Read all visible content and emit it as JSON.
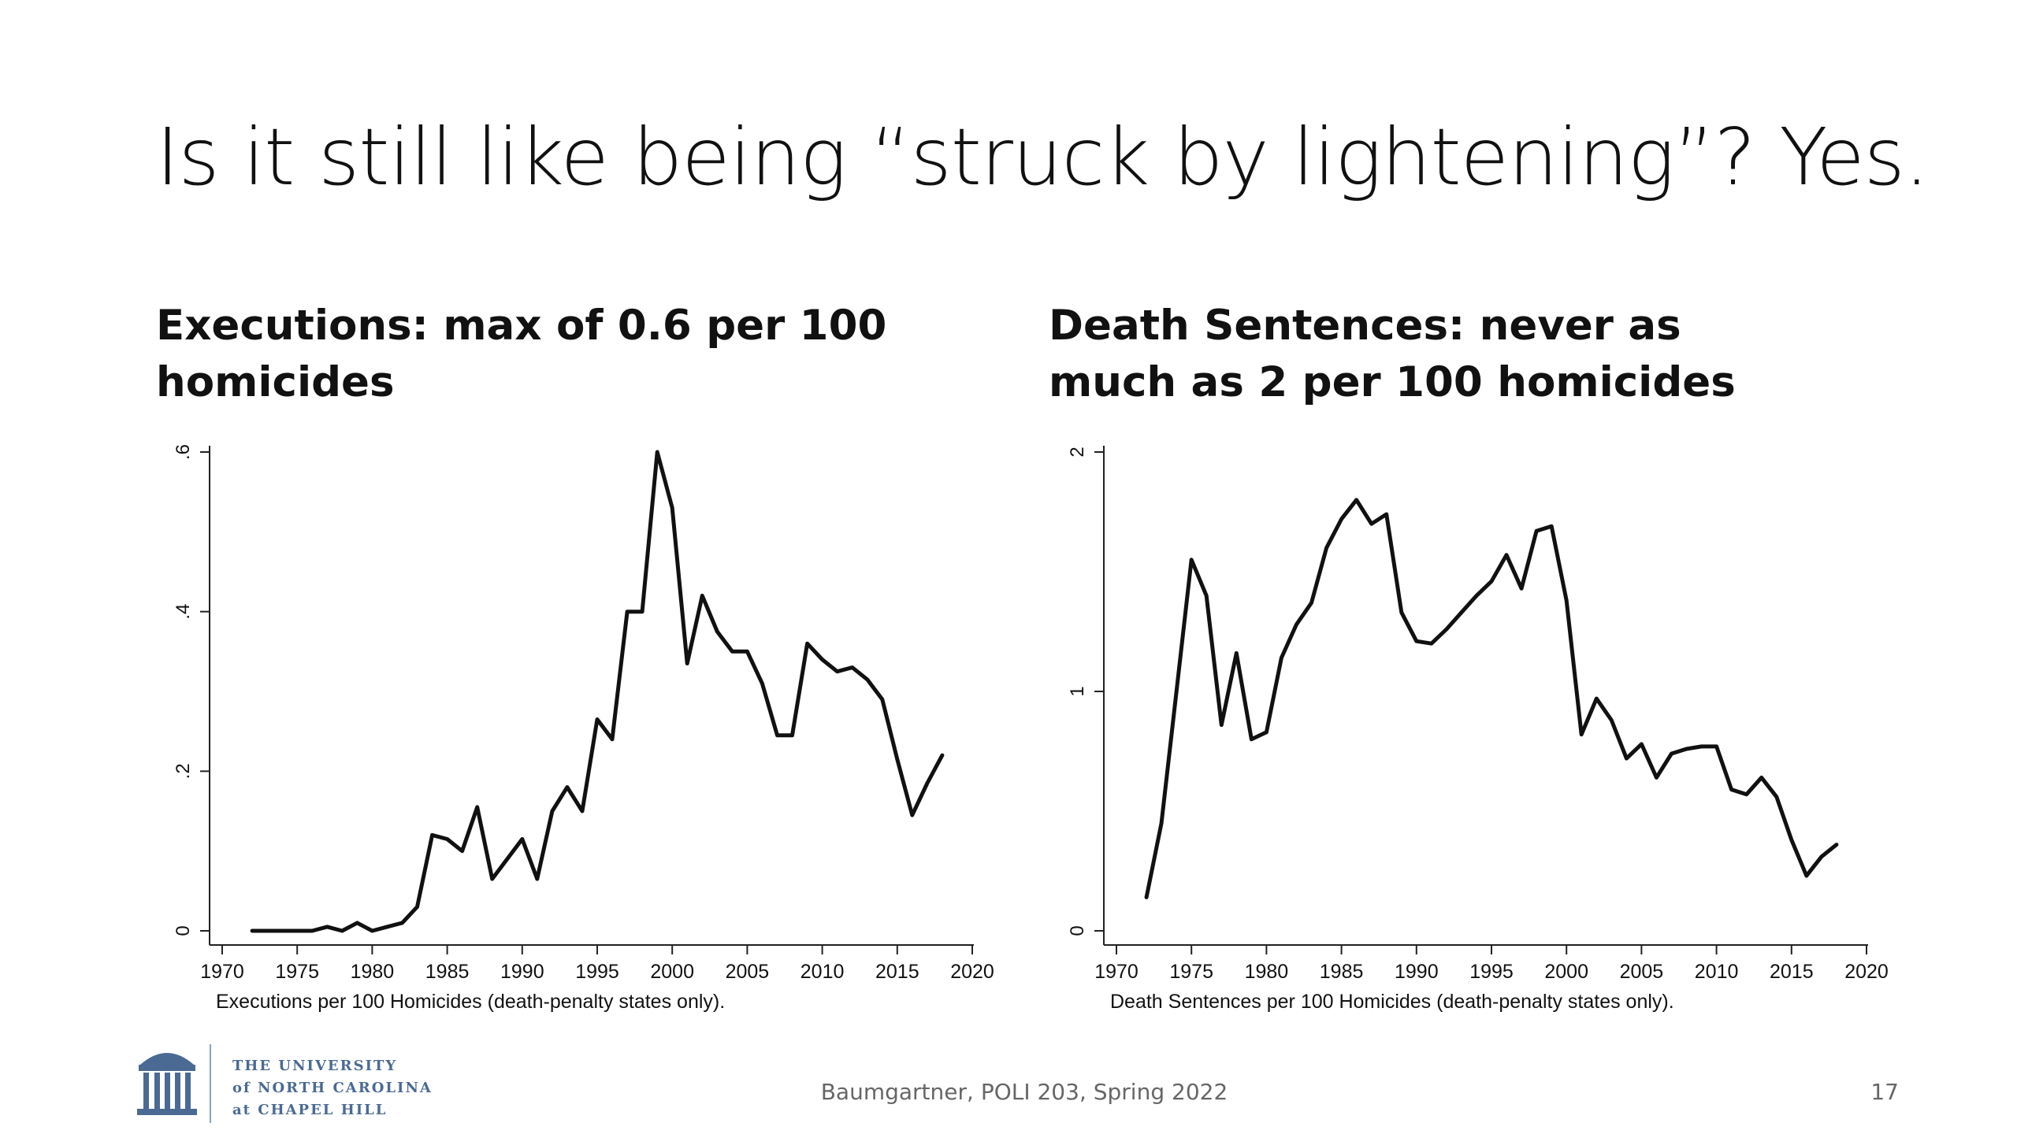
{
  "slide": {
    "title": "Is it still like being “struck by lightening”? Yes.",
    "footer": "Baumgartner, POLI 203, Spring 2022",
    "page_number": "17",
    "logo": {
      "line1": "THE UNIVERSITY",
      "line2": "of NORTH CAROLINA",
      "line3": "at CHAPEL HILL"
    }
  },
  "headings": {
    "left": "Executions: max of 0.6 per 100 homicides",
    "right": "Death Sentences: never as much as 2 per 100 homicides"
  },
  "colors": {
    "line": "#111111",
    "axis": "#222222",
    "text": "#111111",
    "logo": "#4B6A93"
  },
  "chart_data": [
    {
      "type": "line",
      "title": "Executions: max of 0.6 per 100 homicides",
      "xlabel": "Executions per 100 Homicides (death-penalty states only).",
      "ylabel": "",
      "xlim": [
        1970,
        2020
      ],
      "ylim": [
        0,
        0.6
      ],
      "xticks": [
        1970,
        1975,
        1980,
        1985,
        1990,
        1995,
        2000,
        2005,
        2010,
        2015,
        2020
      ],
      "xtick_labels": [
        "1970",
        "1975",
        "1980",
        "1985",
        "1990",
        "1995",
        "2000",
        "2005",
        "2010",
        "2015",
        "2020"
      ],
      "yticks": [
        0,
        0.2,
        0.4,
        0.6
      ],
      "ytick_labels": [
        "0",
        ".2",
        ".4",
        ".6"
      ],
      "series": [
        {
          "name": "Executions per 100 Homicides",
          "x": [
            1972,
            1973,
            1974,
            1975,
            1976,
            1977,
            1978,
            1979,
            1980,
            1981,
            1982,
            1983,
            1984,
            1985,
            1986,
            1987,
            1988,
            1989,
            1990,
            1991,
            1992,
            1993,
            1994,
            1995,
            1996,
            1997,
            1998,
            1999,
            2000,
            2001,
            2002,
            2003,
            2004,
            2005,
            2006,
            2007,
            2008,
            2009,
            2010,
            2011,
            2012,
            2013,
            2014,
            2015,
            2016,
            2017,
            2018
          ],
          "values": [
            0,
            0,
            0,
            0,
            0,
            0.005,
            0,
            0.01,
            0,
            0.005,
            0.01,
            0.03,
            0.12,
            0.115,
            0.1,
            0.155,
            0.065,
            0.09,
            0.115,
            0.065,
            0.15,
            0.18,
            0.15,
            0.265,
            0.24,
            0.4,
            0.4,
            0.6,
            0.53,
            0.335,
            0.42,
            0.375,
            0.35,
            0.35,
            0.31,
            0.245,
            0.245,
            0.36,
            0.34,
            0.325,
            0.33,
            0.315,
            0.29,
            0.215,
            0.145,
            0.185,
            0.22
          ]
        }
      ],
      "grid": false
    },
    {
      "type": "line",
      "title": "Death Sentences: never as much as 2 per 100 homicides",
      "xlabel": "Death Sentences per 100 Homicides (death-penalty states only).",
      "ylabel": "",
      "xlim": [
        1970,
        2020
      ],
      "ylim": [
        0,
        2
      ],
      "xticks": [
        1970,
        1975,
        1980,
        1985,
        1990,
        1995,
        2000,
        2005,
        2010,
        2015,
        2020
      ],
      "xtick_labels": [
        "1970",
        "1975",
        "1980",
        "1985",
        "1990",
        "1995",
        "2000",
        "2005",
        "2010",
        "2015",
        "2020"
      ],
      "yticks": [
        0,
        1,
        2
      ],
      "ytick_labels": [
        "0",
        "1",
        "2"
      ],
      "series": [
        {
          "name": "Death Sentences per 100 Homicides",
          "x": [
            1972,
            1973,
            1974,
            1975,
            1976,
            1977,
            1978,
            1979,
            1980,
            1981,
            1982,
            1983,
            1984,
            1985,
            1986,
            1987,
            1988,
            1989,
            1990,
            1991,
            1992,
            1993,
            1994,
            1995,
            1996,
            1997,
            1998,
            1999,
            2000,
            2001,
            2002,
            2003,
            2004,
            2005,
            2006,
            2007,
            2008,
            2009,
            2010,
            2011,
            2012,
            2013,
            2014,
            2015,
            2016,
            2017,
            2018
          ],
          "values": [
            0.14,
            0.45,
            1.0,
            1.55,
            1.4,
            0.86,
            1.16,
            0.8,
            0.83,
            1.14,
            1.28,
            1.37,
            1.6,
            1.72,
            1.8,
            1.7,
            1.74,
            1.33,
            1.21,
            1.2,
            1.26,
            1.33,
            1.4,
            1.46,
            1.57,
            1.43,
            1.67,
            1.69,
            1.38,
            0.82,
            0.97,
            0.88,
            0.72,
            0.78,
            0.64,
            0.74,
            0.76,
            0.77,
            0.77,
            0.59,
            0.57,
            0.64,
            0.56,
            0.38,
            0.23,
            0.31,
            0.36
          ]
        }
      ],
      "grid": false
    }
  ]
}
